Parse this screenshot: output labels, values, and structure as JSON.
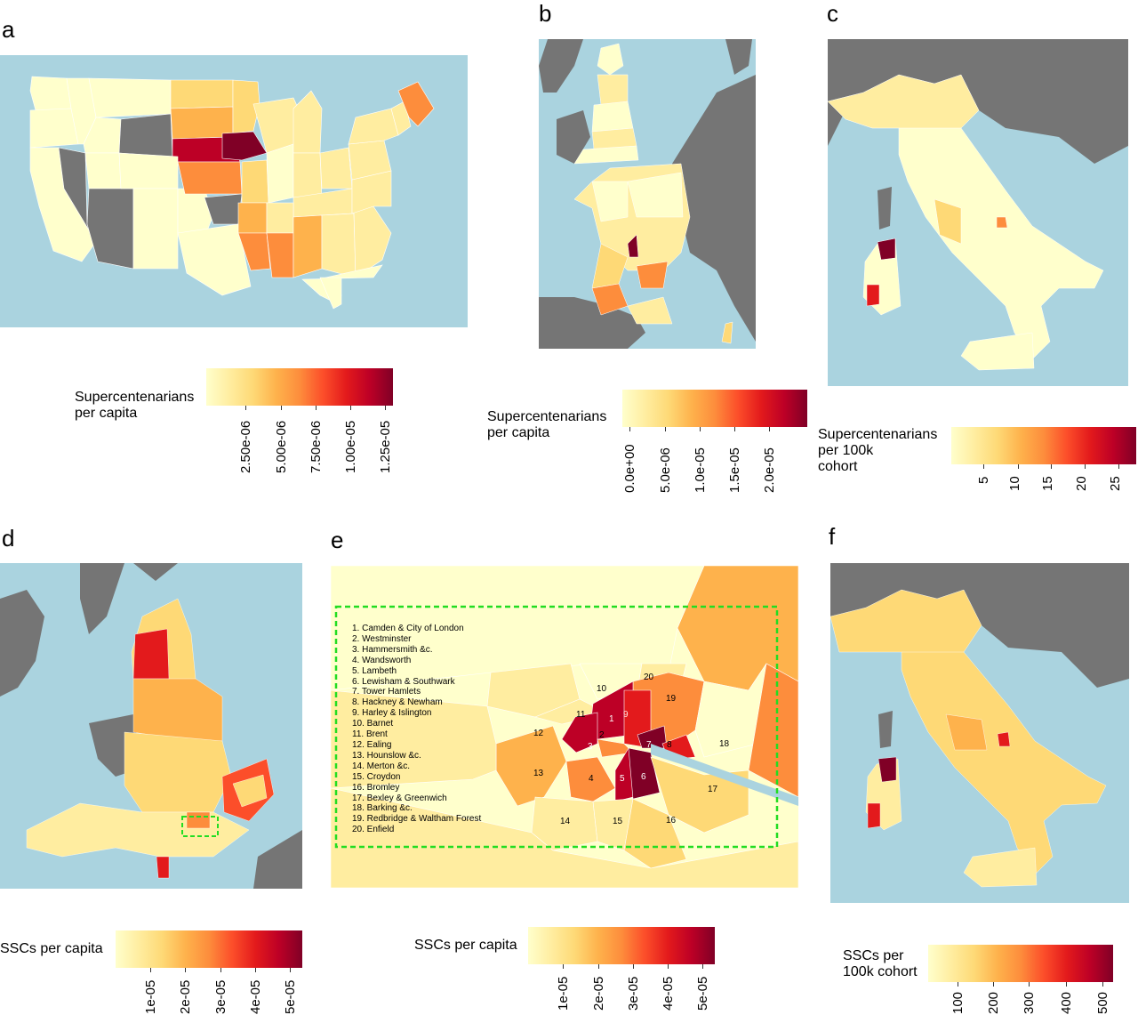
{
  "colors": {
    "sea": "#aad3df",
    "land_gray": "#757575",
    "scale": [
      "#ffffcc",
      "#ffeda0",
      "#fed976",
      "#feb24c",
      "#fd8d3c",
      "#fc4e2a",
      "#e31a1c",
      "#bd0026",
      "#800026"
    ]
  },
  "panels": {
    "a": {
      "letter": "a",
      "legend_title": "Supercentenarians\nper capita",
      "ticks": [
        "2.50e-06",
        "5.00e-06",
        "7.50e-06",
        "1.00e-05",
        "1.25e-05"
      ]
    },
    "b": {
      "letter": "b",
      "legend_title": "Supercentenarians\n per capita",
      "ticks": [
        "0.0e+00",
        "5.0e-06",
        "1.0e-05",
        "1.5e-05",
        "2.0e-05"
      ]
    },
    "c": {
      "letter": "c",
      "legend_title": "Supercentenarians\nper 100k\ncohort",
      "ticks": [
        "5",
        "10",
        "15",
        "20",
        "25"
      ]
    },
    "d": {
      "letter": "d",
      "legend_title": "SSCs per capita",
      "ticks": [
        "1e-05",
        "2e-05",
        "3e-05",
        "4e-05",
        "5e-05"
      ]
    },
    "e": {
      "letter": "e",
      "legend_title": "SSCs per capita",
      "ticks": [
        "1e-05",
        "2e-05",
        "3e-05",
        "4e-05",
        "5e-05"
      ],
      "boroughs": [
        "1.  Camden & City of London",
        "2.  Westminster",
        "3.  Hammersmith &c.",
        "4.  Wandsworth",
        "5.  Lambeth",
        "6.  Lewisham & Southwark",
        "7.  Tower Hamlets",
        "8.  Hackney & Newham",
        "9.  Harley & Islington",
        "10. Barnet",
        "11. Brent",
        "12. Ealing",
        "13. Hounslow &c.",
        "14. Merton &c.",
        "15. Croydon",
        "16. Bromley",
        "17. Bexley & Greenwich",
        "18. Barking &c.",
        "19. Redbridge & Waltham Forest",
        "20. Enfield"
      ],
      "region_numbers": [
        "1",
        "2",
        "3",
        "4",
        "5",
        "6",
        "7",
        "8",
        "9",
        "10",
        "11",
        "12",
        "13",
        "14",
        "15",
        "16",
        "17",
        "18",
        "19",
        "20"
      ]
    },
    "f": {
      "letter": "f",
      "legend_title": "SSCs per\n100k cohort",
      "ticks": [
        "100",
        "200",
        "300",
        "400",
        "500"
      ]
    }
  }
}
